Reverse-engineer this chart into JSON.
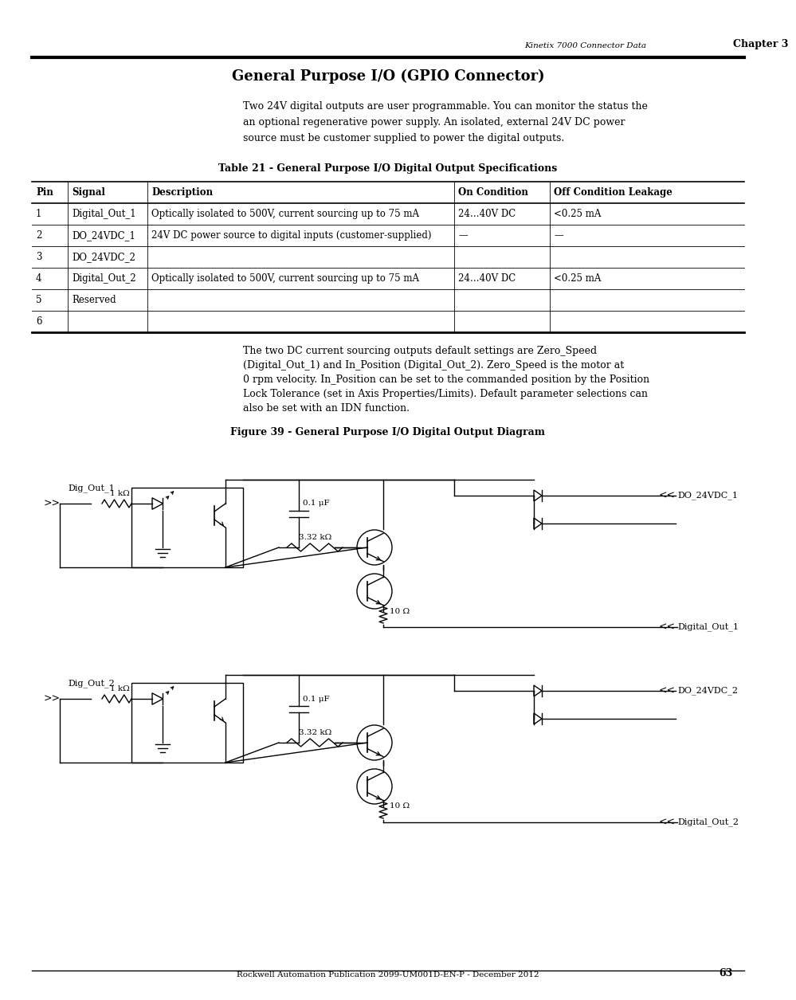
{
  "page_header_left": "Kinetix 7000 Connector Data",
  "page_header_right": "Chapter 3",
  "page_title": "General Purpose I/O (GPIO Connector)",
  "intro_text": "Two 24V digital outputs are user programmable. You can monitor the status the\nan optional regenerative power supply. An isolated, external 24V DC power\nsource must be customer supplied to power the digital outputs.",
  "table_title": "Table 21 - General Purpose I/O Digital Output Specifications",
  "table_headers": [
    "Pin",
    "Signal",
    "Description",
    "On Condition",
    "Off Condition Leakage"
  ],
  "table_rows": [
    [
      "1",
      "Digital_Out_1",
      "Optically isolated to 500V, current sourcing up to 75 mA",
      "24…40V DC",
      "<0.25 mA"
    ],
    [
      "2",
      "DO_24VDC_1",
      "24V DC power source to digital inputs (customer-supplied)",
      "—",
      "—"
    ],
    [
      "3",
      "DO_24VDC_2",
      "",
      "",
      ""
    ],
    [
      "4",
      "Digital_Out_2",
      "Optically isolated to 500V, current sourcing up to 75 mA",
      "24…40V DC",
      "<0.25 mA"
    ],
    [
      "5",
      "Reserved",
      "",
      "",
      ""
    ],
    [
      "6",
      "",
      "",
      "",
      ""
    ]
  ],
  "body_text": "The two DC current sourcing outputs default settings are Zero_Speed\n(Digital_Out_1) and In_Position (Digital_Out_2). Zero_Speed is the motor at\n0 rpm velocity. In_Position can be set to the commanded position by the Position\nLock Tolerance (set in Axis Properties/Limits). Default parameter selections can\nalso be set with an IDN function.",
  "figure_title": "Figure 39 - General Purpose I/O Digital Output Diagram",
  "footer_text": "Rockwell Automation Publication 2099-UM001D-EN-P - December 2012",
  "page_number": "63",
  "bg_color": "#ffffff",
  "text_color": "#000000"
}
